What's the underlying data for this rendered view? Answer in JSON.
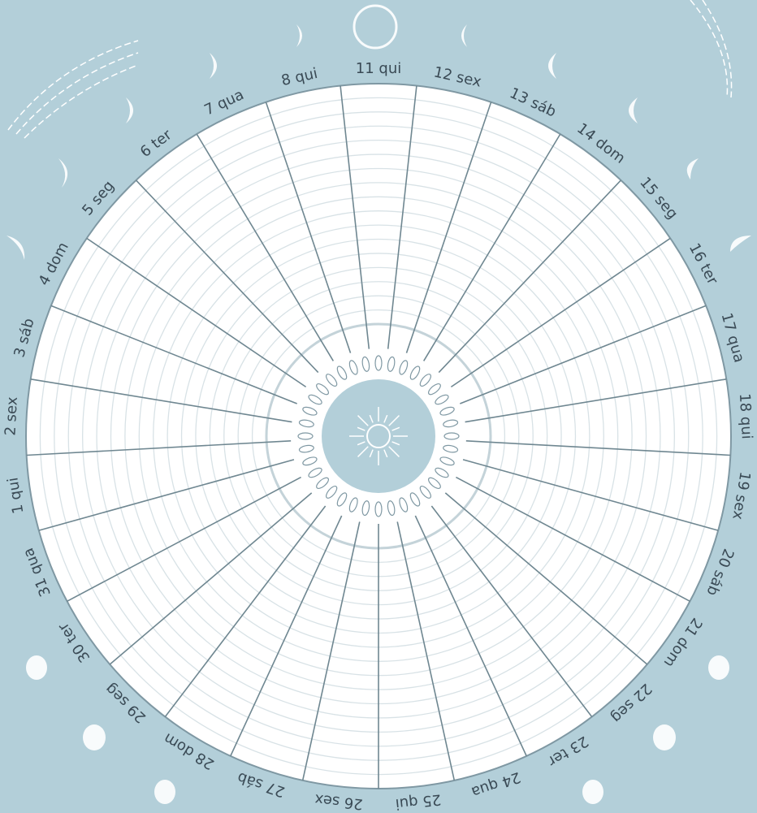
{
  "days": [
    "1 qui",
    "2 sex",
    "3 sáb",
    "4 dom",
    "5 seg",
    "6 ter",
    "7 qua",
    "8 qui",
    "11 qui",
    "12 sex",
    "13 sáb",
    "14 dom",
    "15 seg",
    "16 ter",
    "17 qua",
    "18 qui",
    "19 sex",
    "20 sáb",
    "21 dom",
    "22 seg",
    "23 ter",
    "24 qua",
    "25 qui",
    "26 sex",
    "27 sáb",
    "28 dom",
    "29 seg",
    "30 ter",
    "31 qua"
  ]
}
